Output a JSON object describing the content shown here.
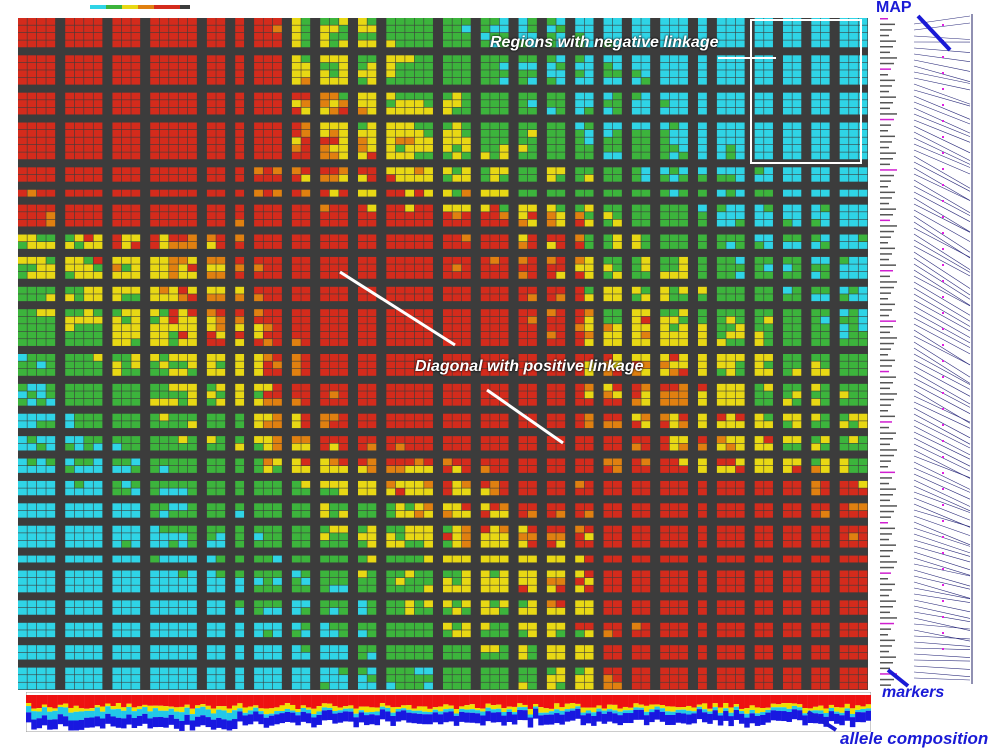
{
  "chart_data": {
    "type": "heatmap",
    "description_scale": [
      "red",
      "yellow",
      "green",
      "cyan"
    ],
    "colors": {
      "high": "#d42b1c",
      "mid_high": "#e08010",
      "mid": "#e8d814",
      "low_mid": "#3cb43c",
      "low": "#2fd4e6",
      "missing": "#3c3c3c",
      "grid": "#777777",
      "allele_red": "#ee1111",
      "allele_yellow": "#f0e000",
      "allele_cyan": "#22c8e8",
      "allele_blue": "#1818e0"
    }
  },
  "annotations": {
    "negative_linkage": "Regions with negative linkage",
    "positive_linkage": "Diagonal with positive linkage",
    "map": "MAP",
    "markers": "markers",
    "allele_composition": "allele composition"
  }
}
